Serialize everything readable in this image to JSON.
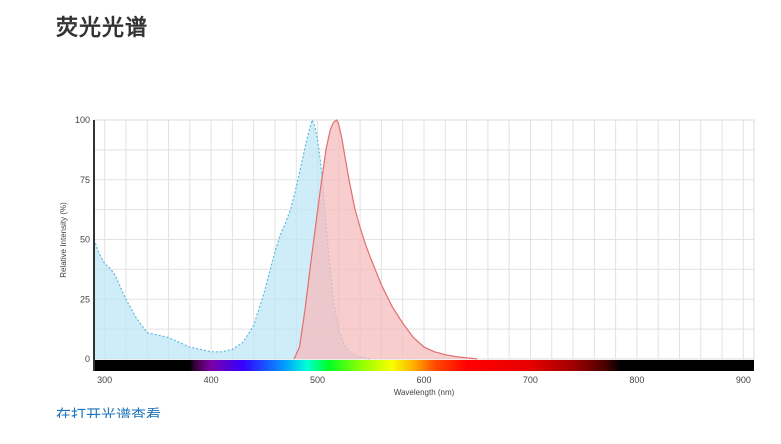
{
  "header": {
    "title": "荧光光谱"
  },
  "footer": {
    "link_text": "在打开光谱查看"
  },
  "chart_data": {
    "type": "area",
    "xlabel": "Wavelength (nm)",
    "ylabel": "Relative Intensity (%)",
    "xlim": [
      290,
      910
    ],
    "ylim": [
      0,
      100
    ],
    "x_ticks": [
      300,
      400,
      500,
      600,
      700,
      800,
      900
    ],
    "y_ticks": [
      0,
      25,
      50,
      75,
      100
    ],
    "grid": true,
    "colors": {
      "excitation_fill": "#bfe6f7",
      "excitation_line": "#5bbbe0",
      "emission_fill": "#f5bcbc",
      "emission_line": "#e07070",
      "grid": "#e2e2e2"
    },
    "series": [
      {
        "key": "excitation",
        "x": [
          290,
          295,
          300,
          305,
          310,
          320,
          330,
          340,
          350,
          360,
          370,
          380,
          390,
          400,
          410,
          420,
          430,
          440,
          450,
          460,
          465,
          470,
          475,
          480,
          485,
          490,
          493,
          495,
          497,
          500,
          503,
          506,
          510,
          515,
          520,
          525,
          530,
          535,
          540,
          550
        ],
        "y": [
          50,
          44,
          40,
          38,
          35,
          25,
          17,
          11,
          10,
          9,
          7,
          5,
          4,
          3,
          3,
          4,
          7,
          14,
          28,
          45,
          52,
          57,
          63,
          72,
          82,
          92,
          97,
          100,
          98,
          92,
          82,
          68,
          46,
          24,
          12,
          6,
          3,
          1.5,
          0.8,
          0
        ]
      },
      {
        "key": "emission",
        "x": [
          478,
          483,
          488,
          493,
          498,
          503,
          508,
          512,
          515,
          518,
          520,
          523,
          526,
          530,
          535,
          540,
          545,
          550,
          560,
          570,
          580,
          590,
          600,
          610,
          620,
          630,
          640,
          650
        ],
        "y": [
          0,
          5,
          20,
          38,
          55,
          72,
          88,
          96,
          99,
          100,
          98,
          92,
          84,
          74,
          63,
          55,
          48,
          42,
          31,
          22,
          15,
          9,
          5,
          3,
          1.8,
          1,
          0.5,
          0
        ]
      }
    ],
    "spectrum_bar": {
      "stops": [
        [
          290,
          "#000000"
        ],
        [
          380,
          "#000000"
        ],
        [
          385,
          "#3a003a"
        ],
        [
          400,
          "#7a00a8"
        ],
        [
          430,
          "#3400ff"
        ],
        [
          470,
          "#00a0ff"
        ],
        [
          490,
          "#00ffd8"
        ],
        [
          510,
          "#00ff28"
        ],
        [
          540,
          "#8cff00"
        ],
        [
          570,
          "#f8ff00"
        ],
        [
          590,
          "#ffb000"
        ],
        [
          610,
          "#ff4a00"
        ],
        [
          640,
          "#ff0000"
        ],
        [
          700,
          "#e60000"
        ],
        [
          740,
          "#a00000"
        ],
        [
          770,
          "#4a0000"
        ],
        [
          785,
          "#000000"
        ],
        [
          910,
          "#000000"
        ]
      ]
    }
  }
}
